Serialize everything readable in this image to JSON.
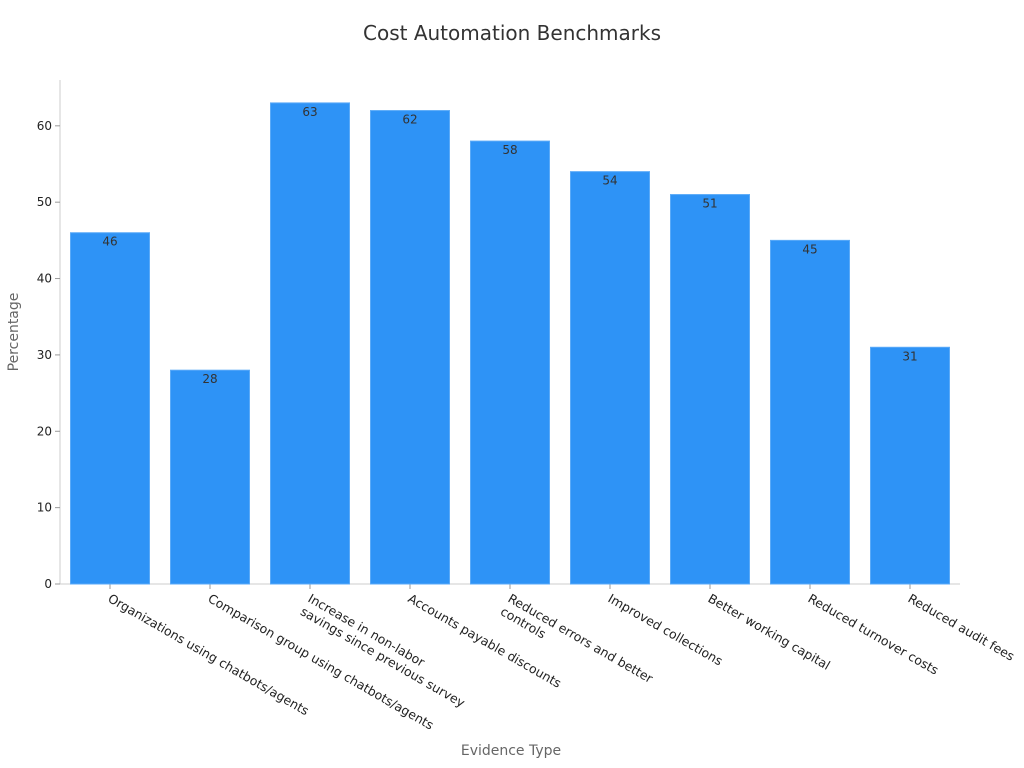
{
  "chart_data": {
    "type": "bar",
    "title": "Cost Automation Benchmarks",
    "xlabel": "Evidence Type",
    "ylabel": "Percentage",
    "categories": [
      [
        "Organizations using chatbots/agents"
      ],
      [
        "Comparison group using chatbots/agents"
      ],
      [
        "Increase in non-labor",
        "savings since previous survey"
      ],
      [
        "Accounts payable discounts"
      ],
      [
        "Reduced errors and better",
        "controls"
      ],
      [
        "Improved collections"
      ],
      [
        "Better working capital"
      ],
      [
        "Reduced turnover costs"
      ],
      [
        "Reduced audit fees"
      ]
    ],
    "values": [
      46,
      28,
      63,
      62,
      58,
      54,
      51,
      45,
      31
    ],
    "ylim": [
      0,
      66
    ],
    "yticks": [
      0,
      10,
      20,
      30,
      40,
      50,
      60
    ],
    "grid": false,
    "legend": "none",
    "bar_color": "#2e93f6",
    "bar_edge_color": "#5aaaf8"
  }
}
